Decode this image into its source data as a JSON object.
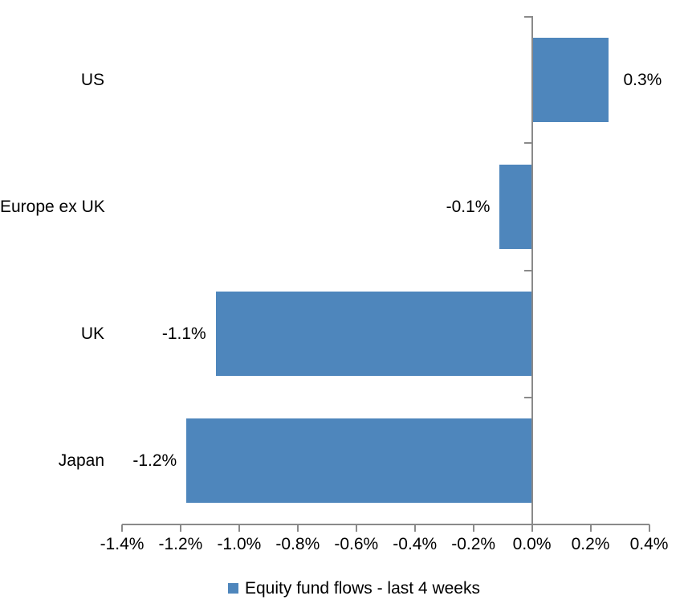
{
  "chart_data": {
    "type": "bar",
    "orientation": "horizontal",
    "title": "",
    "xlabel": "",
    "ylabel": "",
    "categories": [
      "US",
      "Europe ex UK",
      "UK",
      "Japan"
    ],
    "values": [
      0.3,
      -0.1,
      -1.1,
      -1.2
    ],
    "bar_values_precise": [
      0.26,
      -0.11,
      -1.08,
      -1.18
    ],
    "data_labels": [
      "0.3%",
      "-0.1%",
      "-1.1%",
      "-1.2%"
    ],
    "series_name": "Equity fund flows - last 4 weeks",
    "x_axis": {
      "min": -1.4,
      "max": 0.4,
      "tick_step": 0.2,
      "tick_labels": [
        "-1.4%",
        "-1.2%",
        "-1.0%",
        "-0.8%",
        "-0.6%",
        "-0.4%",
        "-0.2%",
        "0.0%",
        "0.2%",
        "0.4%"
      ]
    },
    "grid": false,
    "legend": {
      "position": "bottom",
      "entries": [
        "Equity fund flows - last 4 weeks"
      ]
    },
    "colors": {
      "bar": "#4E86BC",
      "axis": "#8A8A8A",
      "text": "#000000",
      "background": "#FFFFFF"
    }
  }
}
